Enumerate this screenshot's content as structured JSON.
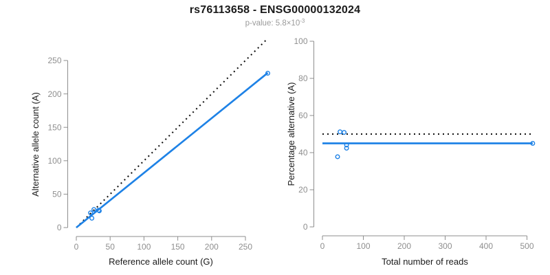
{
  "header": {
    "title": "rs76113658 - ENSG00000132024",
    "subtitle": {
      "text": "p-value: 5.8×10",
      "exp": "-3"
    }
  },
  "colors": {
    "accent_blue": "#1E82E6",
    "axis_gray": "#8e8e8e",
    "text_black": "#1a1a1a",
    "dotted_black": "#111111"
  },
  "chart_data": [
    {
      "type": "scatter",
      "title": "",
      "xlabel": "Reference allele count (G)",
      "ylabel": "Alternative allele count (A)",
      "xlim": [
        0,
        283
      ],
      "ylim": [
        0,
        283
      ],
      "xticks": [
        0,
        50,
        100,
        150,
        200,
        250
      ],
      "yticks": [
        0,
        50,
        100,
        150,
        200,
        250
      ],
      "grid": false,
      "legend": "none",
      "points": [
        [
          21,
          22
        ],
        [
          26,
          27
        ],
        [
          33,
          26
        ],
        [
          34,
          25
        ],
        [
          23,
          14
        ],
        [
          283,
          231
        ]
      ],
      "lines": [
        {
          "name": "identity-50pct",
          "style": "dotted",
          "color": "#111111",
          "from": [
            0,
            0
          ],
          "to": [
            283,
            283
          ]
        },
        {
          "name": "fitted-ratio",
          "style": "solid",
          "color": "#1E82E6",
          "from": [
            0,
            0
          ],
          "to": [
            283,
            231.5
          ]
        }
      ]
    },
    {
      "type": "scatter",
      "title": "",
      "xlabel": "Total number of reads",
      "ylabel": "Percentage alternative (A)",
      "xlim": [
        0,
        514
      ],
      "ylim": [
        0,
        100
      ],
      "xticks": [
        0,
        100,
        200,
        300,
        400,
        500
      ],
      "yticks": [
        0,
        20,
        40,
        60,
        80,
        100
      ],
      "grid": false,
      "legend": "none",
      "points": [
        [
          43,
          51.2
        ],
        [
          53,
          50.9
        ],
        [
          59,
          44.1
        ],
        [
          59,
          42.4
        ],
        [
          37,
          37.8
        ],
        [
          514,
          45
        ]
      ],
      "lines": [
        {
          "name": "expected-50pct",
          "style": "dotted",
          "color": "#111111",
          "from": [
            0,
            50
          ],
          "to": [
            514,
            50
          ]
        },
        {
          "name": "observed-45pct",
          "style": "solid",
          "color": "#1E82E6",
          "from": [
            0,
            45
          ],
          "to": [
            514,
            45
          ]
        }
      ]
    }
  ]
}
